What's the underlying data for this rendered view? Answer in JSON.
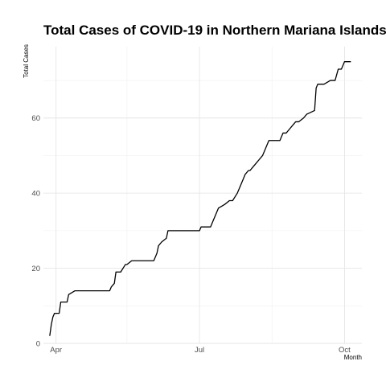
{
  "chart_data": {
    "type": "line",
    "title": "Total Cases of COVID-19 in Northern Mariana Islands",
    "xlabel": "Month",
    "ylabel": "Total Cases",
    "x_axis_type": "date",
    "xlim": [
      "2020-03-24",
      "2020-10-12"
    ],
    "ylim": [
      0,
      79
    ],
    "x_ticks": [
      {
        "date": "2020-04-01",
        "label": "Apr"
      },
      {
        "date": "2020-07-01",
        "label": "Jul"
      },
      {
        "date": "2020-10-01",
        "label": "Oct"
      }
    ],
    "x_minor_ticks": [
      "2020-05-16",
      "2020-08-16"
    ],
    "y_ticks": [
      0,
      20,
      40,
      60
    ],
    "y_minor_ticks": [
      10,
      30,
      50,
      70
    ],
    "grid": true,
    "legend": "none",
    "series": [
      {
        "color": "#000000",
        "x": [
          "2020-03-28",
          "2020-03-29",
          "2020-03-30",
          "2020-03-31",
          "2020-04-03",
          "2020-04-04",
          "2020-04-08",
          "2020-04-09",
          "2020-04-13",
          "2020-04-15",
          "2020-04-17",
          "2020-05-05",
          "2020-05-06",
          "2020-05-08",
          "2020-05-09",
          "2020-05-12",
          "2020-05-15",
          "2020-05-16",
          "2020-05-19",
          "2020-05-21",
          "2020-06-02",
          "2020-06-04",
          "2020-06-05",
          "2020-06-07",
          "2020-06-10",
          "2020-06-11",
          "2020-07-01",
          "2020-07-02",
          "2020-07-08",
          "2020-07-10",
          "2020-07-11",
          "2020-07-13",
          "2020-07-17",
          "2020-07-20",
          "2020-07-22",
          "2020-07-25",
          "2020-07-27",
          "2020-07-30",
          "2020-08-01",
          "2020-08-02",
          "2020-08-04",
          "2020-08-06",
          "2020-08-08",
          "2020-08-10",
          "2020-08-14",
          "2020-08-19",
          "2020-08-21",
          "2020-08-23",
          "2020-08-25",
          "2020-08-27",
          "2020-08-29",
          "2020-08-31",
          "2020-09-02",
          "2020-09-05",
          "2020-09-07",
          "2020-09-12",
          "2020-09-13",
          "2020-09-14",
          "2020-09-15",
          "2020-09-16",
          "2020-09-18",
          "2020-09-22",
          "2020-09-25",
          "2020-09-27",
          "2020-09-29",
          "2020-10-01",
          "2020-10-03",
          "2020-10-04",
          "2020-10-05"
        ],
        "y": [
          2,
          5,
          7,
          8,
          8,
          11,
          11,
          13,
          14,
          14,
          14,
          14,
          15,
          16,
          19,
          19,
          21,
          21,
          22,
          22,
          22,
          24,
          26,
          27,
          28,
          30,
          30,
          31,
          31,
          33,
          34,
          36,
          37,
          38,
          38,
          40,
          42,
          45,
          46,
          46,
          47,
          48,
          49,
          50,
          54,
          54,
          54,
          56,
          56,
          57,
          58,
          59,
          59,
          60,
          61,
          62,
          68,
          69,
          69,
          69,
          69,
          70,
          70,
          73,
          73,
          75,
          75,
          75,
          75
        ]
      }
    ]
  }
}
